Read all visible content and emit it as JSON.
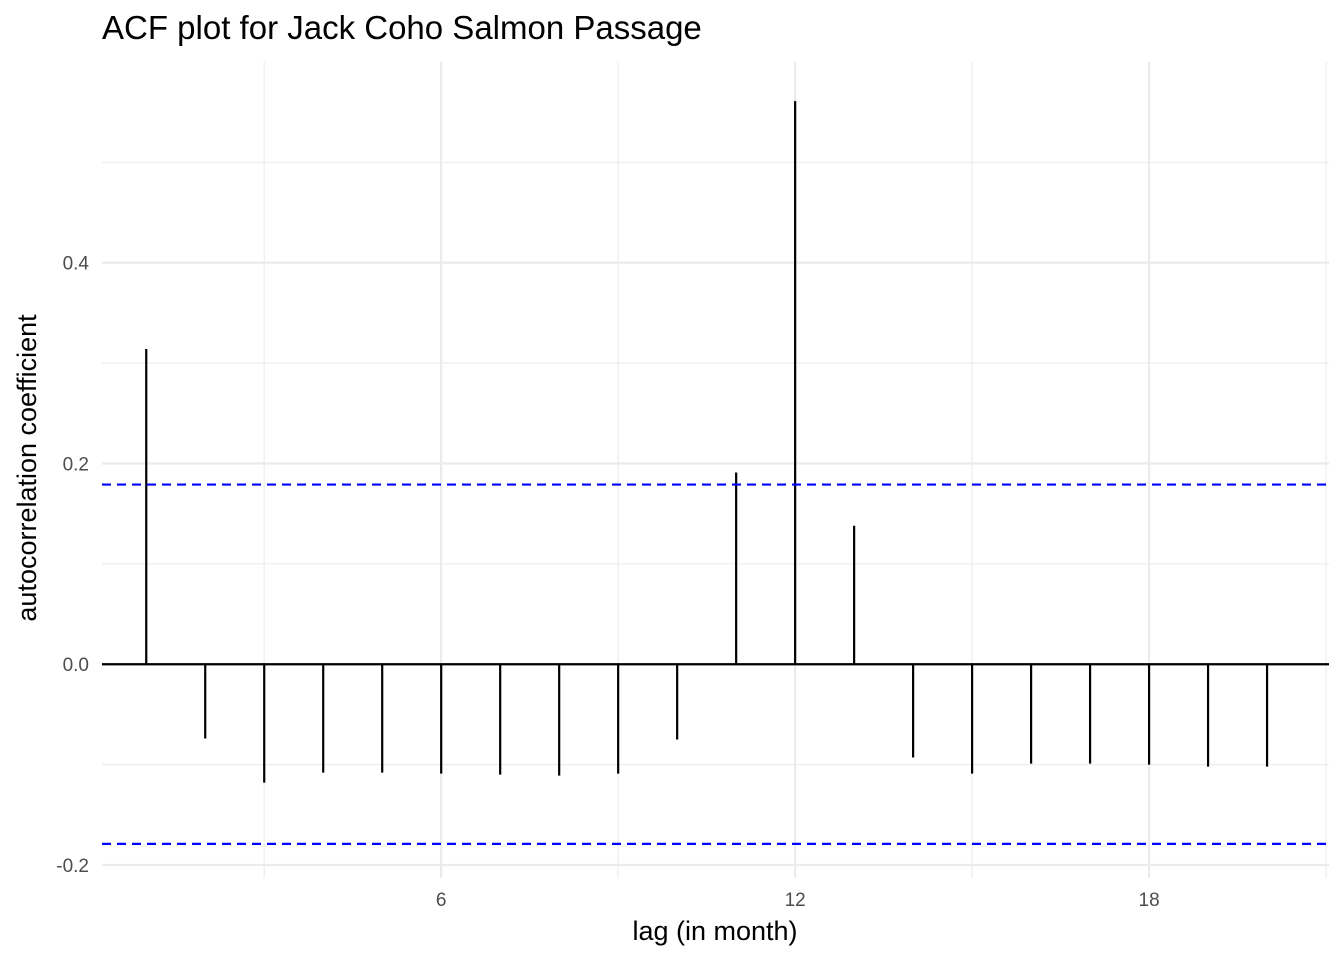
{
  "chart_data": {
    "type": "bar",
    "title": "ACF plot for Jack Coho Salmon Passage",
    "xlabel": "lag (in month)",
    "ylabel": "autocorrelation coefficient",
    "x": [
      1,
      2,
      3,
      4,
      5,
      6,
      7,
      8,
      9,
      10,
      11,
      12,
      13,
      14,
      15,
      16,
      17,
      18,
      19,
      20
    ],
    "values": [
      0.314,
      -0.074,
      -0.118,
      -0.108,
      -0.108,
      -0.109,
      -0.11,
      -0.111,
      -0.109,
      -0.075,
      0.191,
      0.561,
      0.138,
      -0.093,
      -0.109,
      -0.099,
      -0.099,
      -0.1,
      -0.102,
      -0.102
    ],
    "xlim": [
      0.25,
      21.05
    ],
    "ylim": [
      -0.213,
      0.6
    ],
    "x_ticks": [
      6,
      12,
      18
    ],
    "x_tick_labels": [
      "6",
      "12",
      "18"
    ],
    "y_ticks": [
      -0.2,
      0.0,
      0.2,
      0.4
    ],
    "y_tick_labels": [
      "-0.2",
      "0.0",
      "0.2",
      "0.4"
    ],
    "confidence_bounds": [
      0.179,
      -0.179
    ],
    "confidence_line_color": "#0000ff",
    "bar_color": "#000000",
    "grid": true,
    "legend": "none"
  }
}
